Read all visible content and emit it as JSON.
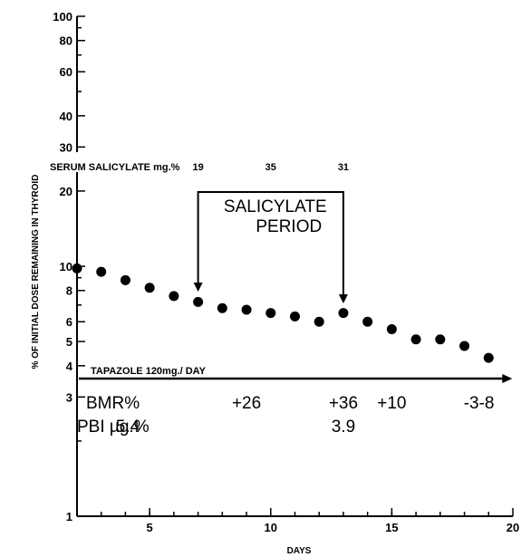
{
  "chart_data": {
    "type": "scatter",
    "ylabel": "% OF INITIAL DOSE REMAINING IN THYROID",
    "xlabel": "DAYS",
    "y_scale": "log",
    "xlim": [
      2,
      20
    ],
    "ylim": [
      1,
      100
    ],
    "x_ticks": [
      5,
      10,
      15,
      20
    ],
    "y_ticks": [
      1,
      3,
      4,
      5,
      6,
      8,
      10,
      20,
      30,
      40,
      60,
      80,
      100
    ],
    "points": [
      {
        "x": 2,
        "y": 9.8
      },
      {
        "x": 3,
        "y": 9.5
      },
      {
        "x": 4,
        "y": 8.8
      },
      {
        "x": 5,
        "y": 8.2
      },
      {
        "x": 6,
        "y": 7.6
      },
      {
        "x": 7,
        "y": 7.2
      },
      {
        "x": 8,
        "y": 6.8
      },
      {
        "x": 9,
        "y": 6.7
      },
      {
        "x": 10,
        "y": 6.5
      },
      {
        "x": 11,
        "y": 6.3
      },
      {
        "x": 12,
        "y": 6.0
      },
      {
        "x": 13,
        "y": 6.5
      },
      {
        "x": 14,
        "y": 6.0
      },
      {
        "x": 15,
        "y": 5.6
      },
      {
        "x": 16,
        "y": 5.1
      },
      {
        "x": 17,
        "y": 5.1
      },
      {
        "x": 18,
        "y": 4.8
      },
      {
        "x": 19,
        "y": 4.3
      }
    ],
    "serum_salicylate": {
      "label": "SERUM SALICYLATE mg.%",
      "values": [
        {
          "x": 7,
          "text": "19"
        },
        {
          "x": 10,
          "text": "35"
        },
        {
          "x": 13,
          "text": "31"
        }
      ]
    },
    "salicylate_period": {
      "line1": "SALICYLATE",
      "line2": "PERIOD",
      "start_day": 7,
      "end_day": 13
    },
    "tapazole": {
      "label": "TAPAZOLE 120mg./ DAY",
      "start_day": 2,
      "end_day": 19.9
    },
    "bmr": {
      "label": "BMR%",
      "values": [
        {
          "x": 9,
          "text": "+26"
        },
        {
          "x": 13,
          "text": "+36"
        },
        {
          "x": 15,
          "text": "+10"
        },
        {
          "x": 18.6,
          "text": "-3-8"
        }
      ]
    },
    "pbi": {
      "label": "PBI µg.%",
      "values": [
        {
          "x": 3.6,
          "text": "5.4"
        },
        {
          "x": 13,
          "text": "3.9"
        }
      ]
    }
  }
}
